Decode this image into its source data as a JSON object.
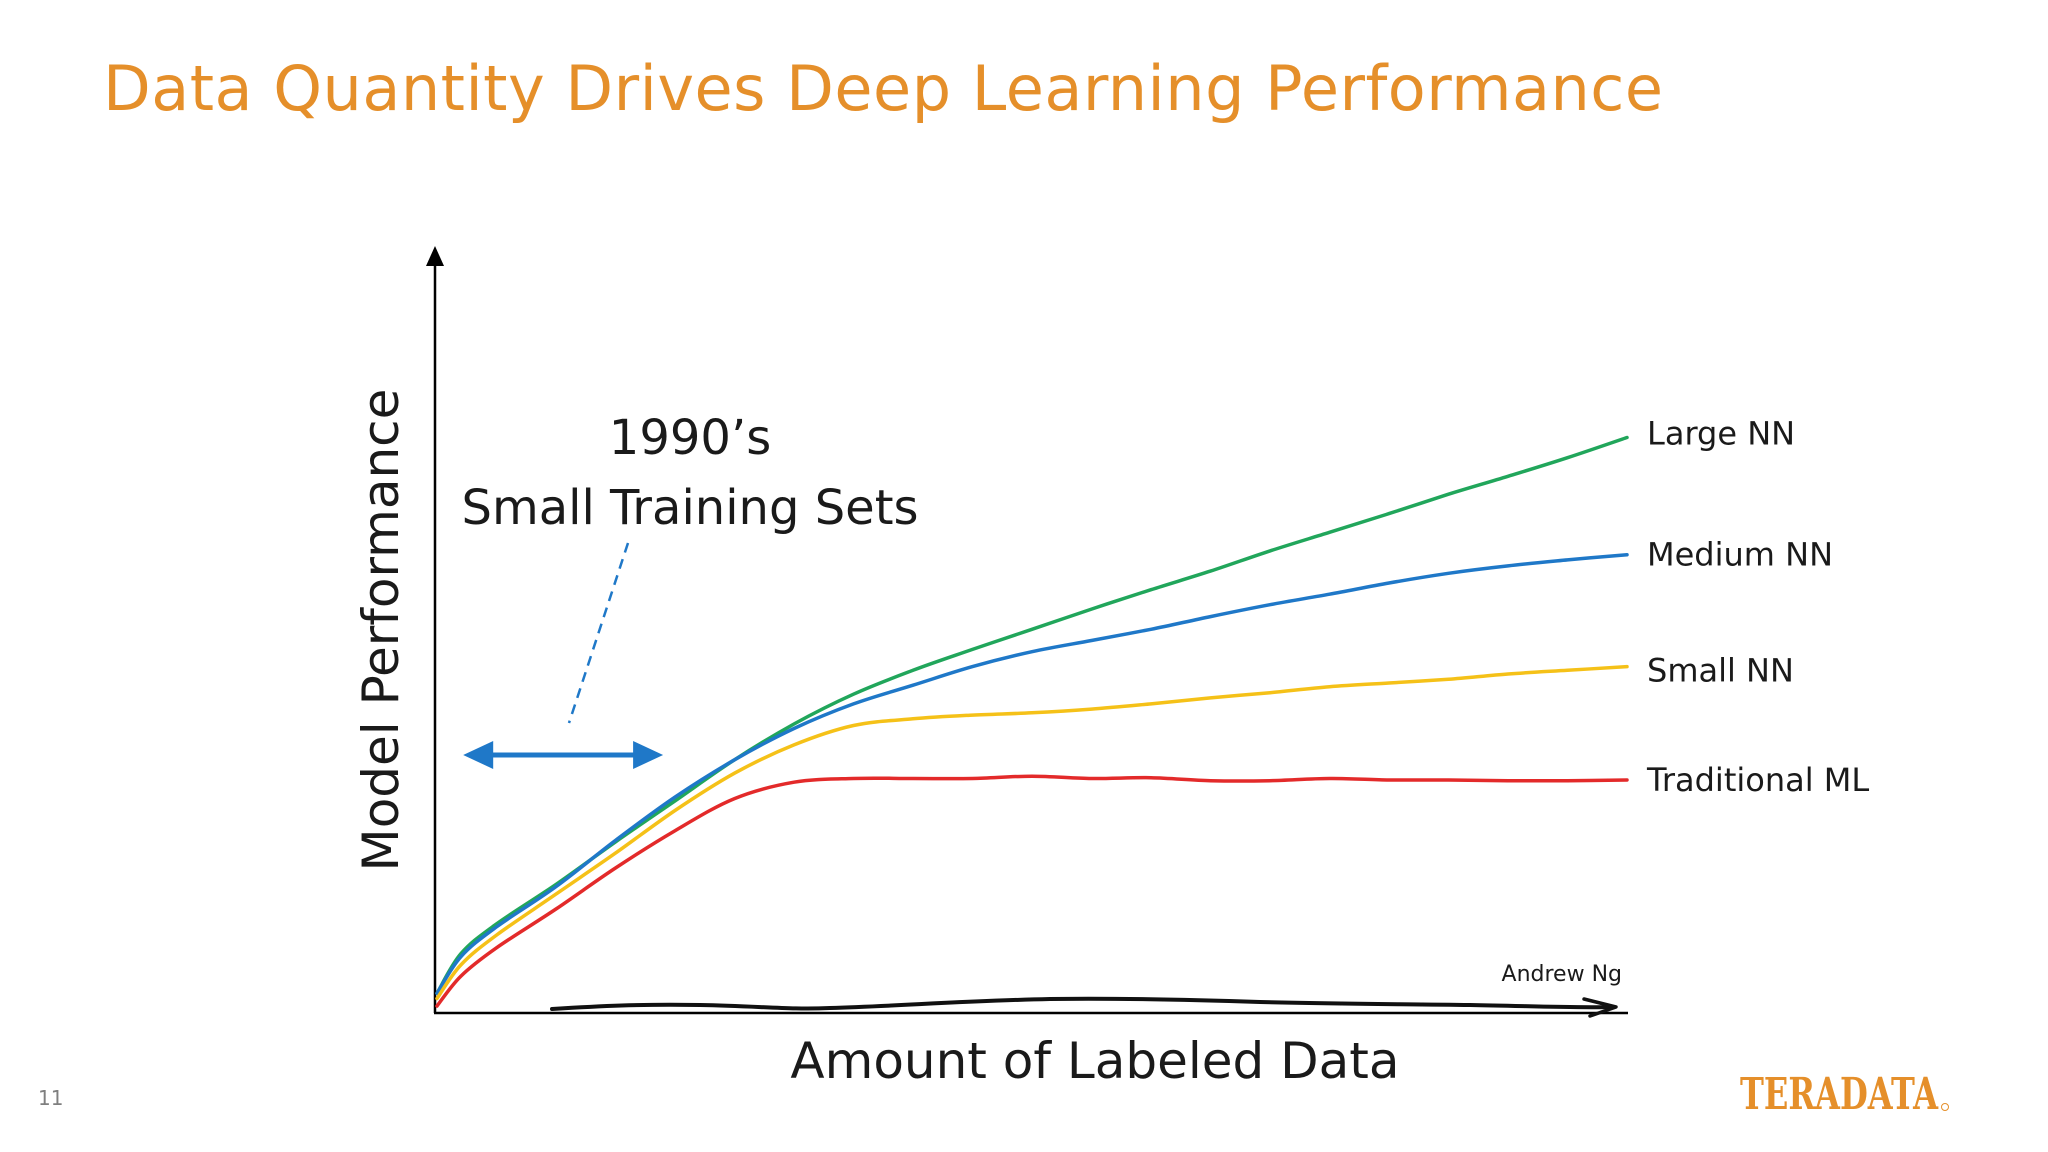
{
  "slide": {
    "title": "Data Quantity Drives Deep Learning Performance",
    "number": "11",
    "logo_text": "TERADATA",
    "accent_color": "#E58F2A"
  },
  "chart_data": {
    "type": "line",
    "xlabel": "Amount of Labeled Data",
    "ylabel": "Model Performance",
    "credit": "Andrew Ng",
    "x_ticks": false,
    "y_ticks": false,
    "grid": false,
    "legend": "labels at right end of each series",
    "series": [
      {
        "name": "Large NN",
        "color": "#21A65B",
        "points": [
          [
            0,
            0.017
          ],
          [
            2,
            0.07
          ],
          [
            5,
            0.11
          ],
          [
            10,
            0.163
          ],
          [
            15,
            0.22
          ],
          [
            20,
            0.275
          ],
          [
            25,
            0.33
          ],
          [
            30,
            0.378
          ],
          [
            35,
            0.418
          ],
          [
            40,
            0.45
          ],
          [
            45,
            0.478
          ],
          [
            50,
            0.505
          ],
          [
            55,
            0.532
          ],
          [
            60,
            0.558
          ],
          [
            65,
            0.583
          ],
          [
            70,
            0.61
          ],
          [
            75,
            0.635
          ],
          [
            80,
            0.66
          ],
          [
            85,
            0.686
          ],
          [
            90,
            0.71
          ],
          [
            95,
            0.735
          ],
          [
            100,
            0.762
          ]
        ]
      },
      {
        "name": "Medium NN",
        "color": "#1F78C8",
        "points": [
          [
            0,
            0.017
          ],
          [
            2,
            0.066
          ],
          [
            5,
            0.106
          ],
          [
            10,
            0.16
          ],
          [
            15,
            0.222
          ],
          [
            20,
            0.28
          ],
          [
            25,
            0.33
          ],
          [
            30,
            0.372
          ],
          [
            35,
            0.405
          ],
          [
            40,
            0.43
          ],
          [
            45,
            0.455
          ],
          [
            50,
            0.475
          ],
          [
            55,
            0.49
          ],
          [
            60,
            0.505
          ],
          [
            65,
            0.522
          ],
          [
            70,
            0.538
          ],
          [
            75,
            0.552
          ],
          [
            80,
            0.567
          ],
          [
            85,
            0.58
          ],
          [
            90,
            0.59
          ],
          [
            95,
            0.598
          ],
          [
            100,
            0.605
          ]
        ]
      },
      {
        "name": "Small NN",
        "color": "#F5C118",
        "points": [
          [
            0,
            0.01
          ],
          [
            2,
            0.055
          ],
          [
            5,
            0.095
          ],
          [
            10,
            0.15
          ],
          [
            15,
            0.205
          ],
          [
            20,
            0.262
          ],
          [
            25,
            0.312
          ],
          [
            30,
            0.35
          ],
          [
            35,
            0.376
          ],
          [
            40,
            0.385
          ],
          [
            45,
            0.39
          ],
          [
            50,
            0.393
          ],
          [
            55,
            0.398
          ],
          [
            60,
            0.405
          ],
          [
            65,
            0.413
          ],
          [
            70,
            0.42
          ],
          [
            75,
            0.428
          ],
          [
            80,
            0.433
          ],
          [
            85,
            0.438
          ],
          [
            90,
            0.445
          ],
          [
            95,
            0.45
          ],
          [
            100,
            0.455
          ]
        ]
      },
      {
        "name": "Traditional ML",
        "color": "#E32A2A",
        "points": [
          [
            0,
            0.0
          ],
          [
            2,
            0.04
          ],
          [
            5,
            0.078
          ],
          [
            10,
            0.13
          ],
          [
            15,
            0.185
          ],
          [
            20,
            0.235
          ],
          [
            25,
            0.278
          ],
          [
            30,
            0.3
          ],
          [
            35,
            0.305
          ],
          [
            40,
            0.305
          ],
          [
            45,
            0.305
          ],
          [
            50,
            0.308
          ],
          [
            55,
            0.305
          ],
          [
            60,
            0.306
          ],
          [
            65,
            0.302
          ],
          [
            70,
            0.302
          ],
          [
            75,
            0.305
          ],
          [
            80,
            0.303
          ],
          [
            85,
            0.303
          ],
          [
            90,
            0.302
          ],
          [
            95,
            0.302
          ],
          [
            100,
            0.303
          ]
        ]
      }
    ],
    "annotation": {
      "lines": [
        "1990’s",
        "Small Training Sets"
      ],
      "arrow_color": "#1F78C8",
      "arrow_range": [
        2.2,
        19
      ]
    }
  }
}
